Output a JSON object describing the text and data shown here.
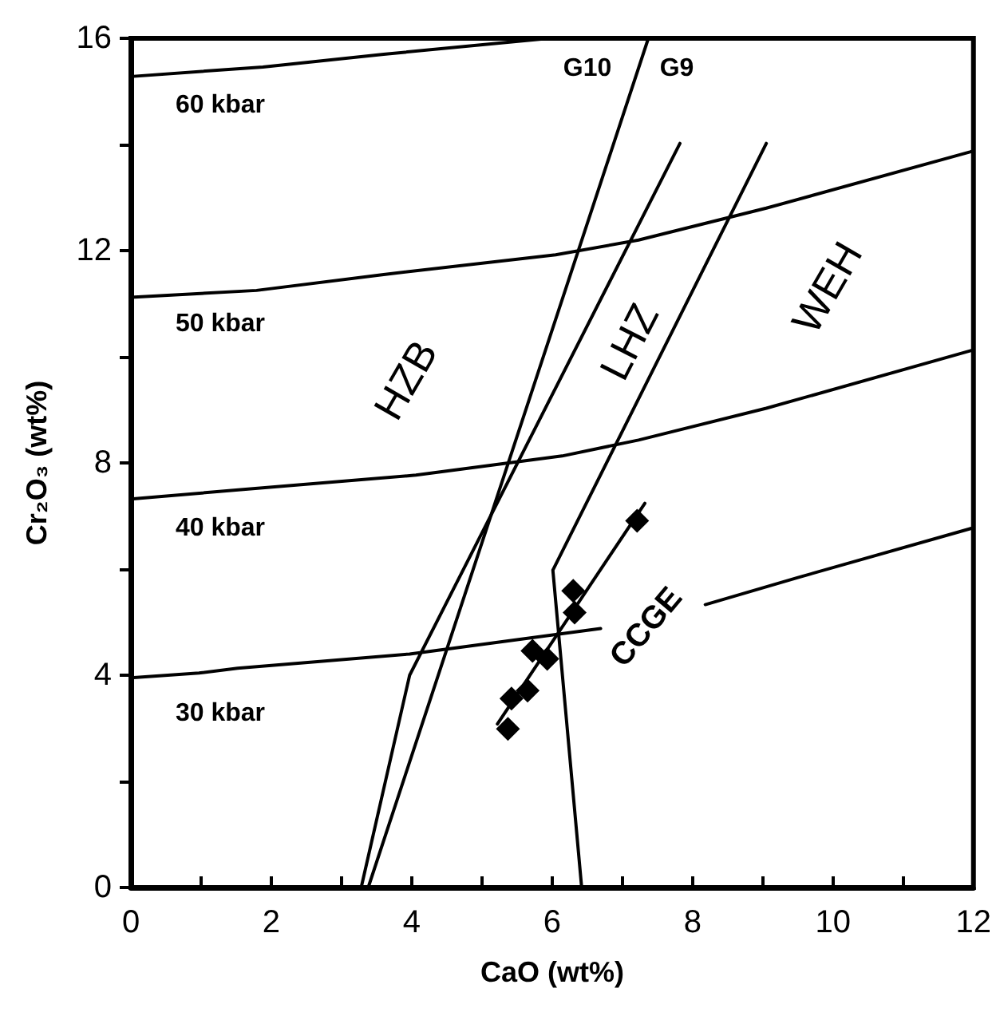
{
  "chart_data": {
    "type": "line",
    "xlabel": "CaO (wt%)",
    "ylabel": "Cr₂O₃ (wt%)",
    "xlim": [
      0,
      12
    ],
    "ylim": [
      0,
      16
    ],
    "xticks": [
      0,
      {
        "value": 1,
        "label": null
      },
      2,
      {
        "value": 3,
        "label": null
      },
      4,
      {
        "value": 5,
        "label": null
      },
      6,
      {
        "value": 7,
        "label": null
      },
      8,
      {
        "value": 9,
        "label": null
      },
      10,
      {
        "value": 11,
        "label": null
      },
      12
    ],
    "yticks": [
      0,
      {
        "value": 2,
        "label": null
      },
      4,
      {
        "value": 6,
        "label": null
      },
      8,
      {
        "value": 10,
        "label": null
      },
      12,
      {
        "value": 14,
        "label": null
      },
      16
    ],
    "grid": false,
    "marker": "none",
    "line_style": "solid",
    "series": [
      {
        "color": "#000000",
        "x": [
          0,
          1.88,
          3.6,
          5.96
        ],
        "values": [
          15.28,
          15.46,
          15.7,
          16
        ]
      },
      {
        "color": "#000000",
        "x": [
          0,
          1.79,
          3.6,
          6.05,
          7.23,
          9.05,
          11.95,
          12
        ],
        "values": [
          11.12,
          11.25,
          11.55,
          11.92,
          12.2,
          12.8,
          13.86,
          13.88
        ]
      },
      {
        "color": "#000000",
        "x": [
          0,
          1.6,
          4.06,
          6.14,
          7.23,
          9.05,
          11.95,
          12
        ],
        "values": [
          7.32,
          7.5,
          7.77,
          8.13,
          8.43,
          9.03,
          10.11,
          10.13
        ]
      },
      {
        "color": "#000000",
        "x": [
          0,
          0.97,
          1.52,
          3.97,
          6.69
        ],
        "values": [
          3.95,
          4.04,
          4.13,
          4.4,
          4.88
        ]
      },
      {
        "color": "#000000",
        "x": [
          8.18,
          9.5,
          11.95,
          12
        ],
        "values": [
          5.33,
          5.84,
          6.76,
          6.78
        ]
      },
      {
        "color": "#000000",
        "x": [
          3.38,
          7.37
        ],
        "values": [
          0,
          16
        ]
      },
      {
        "color": "#000000",
        "x": [
          3.28,
          3.97,
          7.82
        ],
        "values": [
          0,
          4.0,
          14.02
        ]
      },
      {
        "color": "#000000",
        "x": [
          6.42,
          6.01,
          9.05
        ],
        "values": [
          0,
          5.98,
          14.02
        ]
      },
      {
        "color": "#000000",
        "x": [
          5.22,
          7.32
        ],
        "values": [
          3.08,
          7.24
        ]
      },
      {
        "type": "scatter",
        "marker": "diamond",
        "color": "#000000",
        "x": [
          5.37,
          5.42,
          5.65,
          5.72,
          5.93,
          6.3,
          6.32,
          7.21
        ],
        "values": [
          2.99,
          3.56,
          3.71,
          4.46,
          4.31,
          5.59,
          5.18,
          6.91
        ]
      }
    ],
    "annotations": [
      "60 kbar",
      "50 kbar",
      "40 kbar",
      "30 kbar",
      "G10",
      "G9",
      "HZB",
      "LHZ",
      "WEH",
      "CCGE"
    ]
  }
}
